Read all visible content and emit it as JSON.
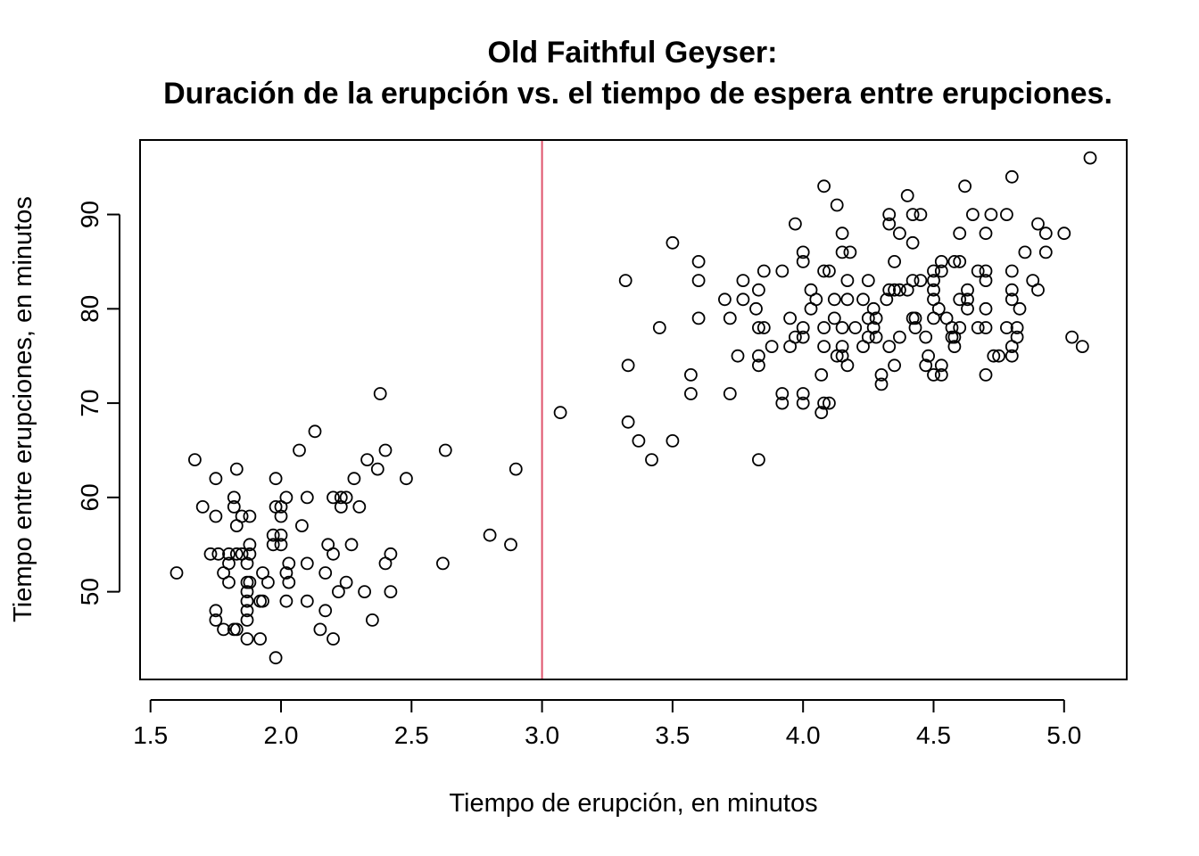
{
  "chart_data": {
    "type": "scatter",
    "title": "Old Faithful Geyser:",
    "subtitle": "Duración de la erupción vs. el tiempo de espera entre erupciones.",
    "xlabel": "Tiempo de erupción, en minutos",
    "ylabel": "Tiempo entre erupciones, en minutos",
    "xlim": [
      1.46,
      5.24
    ],
    "ylim": [
      40.7,
      97.9
    ],
    "xticks": [
      1.5,
      2.0,
      2.5,
      3.0,
      3.5,
      4.0,
      4.5,
      5.0
    ],
    "xtick_labels": [
      "1.5",
      "2.0",
      "2.5",
      "3.0",
      "3.5",
      "4.0",
      "4.5",
      "5.0"
    ],
    "yticks": [
      50,
      60,
      70,
      80,
      90
    ],
    "ytick_labels": [
      "50",
      "60",
      "70",
      "80",
      "90"
    ],
    "grid": false,
    "reference_line": {
      "orientation": "vertical",
      "x": 3.0,
      "color": "#DF536B"
    },
    "marker_color": "#000000",
    "points": [
      [
        1.6,
        52
      ],
      [
        1.67,
        64
      ],
      [
        1.7,
        59
      ],
      [
        1.73,
        54
      ],
      [
        1.75,
        48
      ],
      [
        1.75,
        47
      ],
      [
        1.75,
        58
      ],
      [
        1.75,
        62
      ],
      [
        1.76,
        54
      ],
      [
        1.78,
        46
      ],
      [
        1.78,
        52
      ],
      [
        1.8,
        51
      ],
      [
        1.8,
        53
      ],
      [
        1.8,
        54
      ],
      [
        1.82,
        46
      ],
      [
        1.82,
        60
      ],
      [
        1.82,
        59
      ],
      [
        1.83,
        46
      ],
      [
        1.83,
        63
      ],
      [
        1.83,
        57
      ],
      [
        1.83,
        54
      ],
      [
        1.85,
        54
      ],
      [
        1.85,
        58
      ],
      [
        1.87,
        53
      ],
      [
        1.87,
        51
      ],
      [
        1.87,
        50
      ],
      [
        1.87,
        49
      ],
      [
        1.87,
        48
      ],
      [
        1.87,
        47
      ],
      [
        1.87,
        45
      ],
      [
        1.88,
        58
      ],
      [
        1.88,
        55
      ],
      [
        1.88,
        54
      ],
      [
        1.88,
        51
      ],
      [
        1.92,
        49
      ],
      [
        1.92,
        45
      ],
      [
        1.93,
        52
      ],
      [
        1.93,
        49
      ],
      [
        1.95,
        51
      ],
      [
        1.97,
        56
      ],
      [
        1.97,
        55
      ],
      [
        1.98,
        62
      ],
      [
        1.98,
        59
      ],
      [
        1.98,
        43
      ],
      [
        2.0,
        59
      ],
      [
        2.0,
        58
      ],
      [
        2.0,
        56
      ],
      [
        2.0,
        55
      ],
      [
        2.02,
        60
      ],
      [
        2.02,
        52
      ],
      [
        2.02,
        49
      ],
      [
        2.03,
        53
      ],
      [
        2.03,
        51
      ],
      [
        2.07,
        65
      ],
      [
        2.08,
        57
      ],
      [
        2.1,
        60
      ],
      [
        2.1,
        53
      ],
      [
        2.1,
        49
      ],
      [
        2.13,
        67
      ],
      [
        2.15,
        46
      ],
      [
        2.17,
        52
      ],
      [
        2.17,
        48
      ],
      [
        2.18,
        55
      ],
      [
        2.2,
        60
      ],
      [
        2.2,
        54
      ],
      [
        2.2,
        45
      ],
      [
        2.22,
        50
      ],
      [
        2.23,
        60
      ],
      [
        2.23,
        59
      ],
      [
        2.25,
        60
      ],
      [
        2.25,
        51
      ],
      [
        2.27,
        55
      ],
      [
        2.28,
        62
      ],
      [
        2.3,
        59
      ],
      [
        2.32,
        50
      ],
      [
        2.33,
        64
      ],
      [
        2.35,
        47
      ],
      [
        2.37,
        63
      ],
      [
        2.38,
        71
      ],
      [
        2.4,
        65
      ],
      [
        2.4,
        53
      ],
      [
        2.42,
        54
      ],
      [
        2.42,
        50
      ],
      [
        2.48,
        62
      ],
      [
        2.62,
        53
      ],
      [
        2.63,
        65
      ],
      [
        2.8,
        56
      ],
      [
        2.88,
        55
      ],
      [
        2.9,
        63
      ],
      [
        3.07,
        69
      ],
      [
        3.32,
        83
      ],
      [
        3.33,
        74
      ],
      [
        3.33,
        68
      ],
      [
        3.37,
        66
      ],
      [
        3.42,
        64
      ],
      [
        3.45,
        78
      ],
      [
        3.5,
        87
      ],
      [
        3.5,
        66
      ],
      [
        3.57,
        73
      ],
      [
        3.57,
        71
      ],
      [
        3.6,
        85
      ],
      [
        3.6,
        83
      ],
      [
        3.6,
        79
      ],
      [
        3.7,
        81
      ],
      [
        3.72,
        79
      ],
      [
        3.72,
        71
      ],
      [
        3.75,
        75
      ],
      [
        3.77,
        83
      ],
      [
        3.77,
        81
      ],
      [
        3.82,
        80
      ],
      [
        3.83,
        82
      ],
      [
        3.83,
        78
      ],
      [
        3.83,
        75
      ],
      [
        3.83,
        74
      ],
      [
        3.83,
        64
      ],
      [
        3.85,
        84
      ],
      [
        3.85,
        78
      ],
      [
        3.88,
        76
      ],
      [
        3.92,
        84
      ],
      [
        3.92,
        71
      ],
      [
        3.92,
        70
      ],
      [
        3.95,
        79
      ],
      [
        3.95,
        76
      ],
      [
        3.97,
        89
      ],
      [
        3.97,
        77
      ],
      [
        4.0,
        86
      ],
      [
        4.0,
        85
      ],
      [
        4.0,
        78
      ],
      [
        4.0,
        77
      ],
      [
        4.0,
        71
      ],
      [
        4.0,
        70
      ],
      [
        4.03,
        82
      ],
      [
        4.03,
        80
      ],
      [
        4.05,
        81
      ],
      [
        4.07,
        73
      ],
      [
        4.07,
        69
      ],
      [
        4.08,
        93
      ],
      [
        4.08,
        84
      ],
      [
        4.08,
        78
      ],
      [
        4.08,
        76
      ],
      [
        4.08,
        70
      ],
      [
        4.1,
        84
      ],
      [
        4.1,
        70
      ],
      [
        4.12,
        81
      ],
      [
        4.12,
        79
      ],
      [
        4.13,
        91
      ],
      [
        4.13,
        75
      ],
      [
        4.15,
        88
      ],
      [
        4.15,
        86
      ],
      [
        4.15,
        78
      ],
      [
        4.15,
        76
      ],
      [
        4.15,
        75
      ],
      [
        4.17,
        83
      ],
      [
        4.17,
        81
      ],
      [
        4.17,
        74
      ],
      [
        4.18,
        86
      ],
      [
        4.2,
        78
      ],
      [
        4.23,
        81
      ],
      [
        4.23,
        76
      ],
      [
        4.25,
        83
      ],
      [
        4.25,
        79
      ],
      [
        4.25,
        77
      ],
      [
        4.27,
        80
      ],
      [
        4.27,
        78
      ],
      [
        4.28,
        79
      ],
      [
        4.28,
        77
      ],
      [
        4.3,
        73
      ],
      [
        4.3,
        72
      ],
      [
        4.32,
        81
      ],
      [
        4.33,
        90
      ],
      [
        4.33,
        89
      ],
      [
        4.33,
        82
      ],
      [
        4.33,
        76
      ],
      [
        4.35,
        85
      ],
      [
        4.35,
        82
      ],
      [
        4.35,
        74
      ],
      [
        4.37,
        88
      ],
      [
        4.37,
        82
      ],
      [
        4.37,
        77
      ],
      [
        4.4,
        92
      ],
      [
        4.4,
        82
      ],
      [
        4.42,
        90
      ],
      [
        4.42,
        87
      ],
      [
        4.42,
        83
      ],
      [
        4.42,
        79
      ],
      [
        4.43,
        79
      ],
      [
        4.43,
        78
      ],
      [
        4.45,
        90
      ],
      [
        4.45,
        83
      ],
      [
        4.47,
        77
      ],
      [
        4.47,
        74
      ],
      [
        4.48,
        75
      ],
      [
        4.5,
        84
      ],
      [
        4.5,
        83
      ],
      [
        4.5,
        82
      ],
      [
        4.5,
        81
      ],
      [
        4.5,
        79
      ],
      [
        4.5,
        73
      ],
      [
        4.52,
        80
      ],
      [
        4.53,
        85
      ],
      [
        4.53,
        84
      ],
      [
        4.53,
        74
      ],
      [
        4.53,
        73
      ],
      [
        4.55,
        79
      ],
      [
        4.57,
        78
      ],
      [
        4.57,
        77
      ],
      [
        4.58,
        85
      ],
      [
        4.58,
        77
      ],
      [
        4.58,
        76
      ],
      [
        4.6,
        88
      ],
      [
        4.6,
        85
      ],
      [
        4.6,
        81
      ],
      [
        4.6,
        78
      ],
      [
        4.62,
        93
      ],
      [
        4.63,
        82
      ],
      [
        4.63,
        81
      ],
      [
        4.63,
        80
      ],
      [
        4.65,
        90
      ],
      [
        4.67,
        84
      ],
      [
        4.67,
        78
      ],
      [
        4.7,
        88
      ],
      [
        4.7,
        84
      ],
      [
        4.7,
        83
      ],
      [
        4.7,
        80
      ],
      [
        4.7,
        78
      ],
      [
        4.7,
        73
      ],
      [
        4.72,
        90
      ],
      [
        4.73,
        75
      ],
      [
        4.75,
        75
      ],
      [
        4.78,
        90
      ],
      [
        4.78,
        78
      ],
      [
        4.8,
        94
      ],
      [
        4.8,
        84
      ],
      [
        4.8,
        82
      ],
      [
        4.8,
        81
      ],
      [
        4.8,
        76
      ],
      [
        4.8,
        75
      ],
      [
        4.82,
        78
      ],
      [
        4.82,
        77
      ],
      [
        4.83,
        80
      ],
      [
        4.85,
        86
      ],
      [
        4.88,
        83
      ],
      [
        4.9,
        89
      ],
      [
        4.9,
        82
      ],
      [
        4.93,
        88
      ],
      [
        4.93,
        86
      ],
      [
        5.0,
        88
      ],
      [
        5.03,
        77
      ],
      [
        5.07,
        76
      ],
      [
        5.1,
        96
      ]
    ]
  }
}
